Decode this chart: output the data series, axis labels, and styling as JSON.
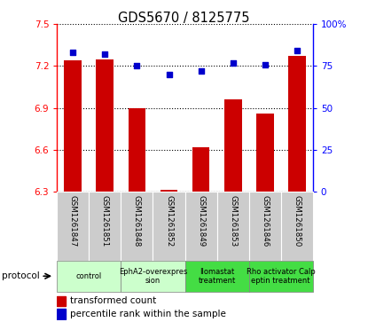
{
  "title": "GDS5670 / 8125775",
  "samples": [
    "GSM1261847",
    "GSM1261851",
    "GSM1261848",
    "GSM1261852",
    "GSM1261849",
    "GSM1261853",
    "GSM1261846",
    "GSM1261850"
  ],
  "bar_values": [
    7.24,
    7.25,
    6.9,
    6.31,
    6.62,
    6.96,
    6.86,
    7.27
  ],
  "dot_values": [
    83,
    82,
    75,
    70,
    72,
    77,
    76,
    84
  ],
  "ylim_left": [
    6.3,
    7.5
  ],
  "ylim_right": [
    0,
    100
  ],
  "yticks_left": [
    6.3,
    6.6,
    6.9,
    7.2,
    7.5
  ],
  "yticks_right": [
    0,
    25,
    50,
    75,
    100
  ],
  "ytick_labels_right": [
    "0",
    "25",
    "50",
    "75",
    "100%"
  ],
  "bar_color": "#cc0000",
  "dot_color": "#0000cc",
  "bg_color": "#ffffff",
  "protocols": [
    {
      "label": "control",
      "spans": [
        0,
        2
      ],
      "color": "#ccffcc"
    },
    {
      "label": "EphA2-overexpres\nsion",
      "spans": [
        2,
        4
      ],
      "color": "#ccffcc"
    },
    {
      "label": "Ilomastat\ntreatment",
      "spans": [
        4,
        6
      ],
      "color": "#44dd44"
    },
    {
      "label": "Rho activator Calp\neptin treatment",
      "spans": [
        6,
        8
      ],
      "color": "#44dd44"
    }
  ],
  "legend_bar_label": "transformed count",
  "legend_dot_label": "percentile rank within the sample",
  "protocol_label": "protocol",
  "bar_width": 0.55,
  "sample_box_color": "#cccccc",
  "grid_color": "#000000",
  "spine_left_color": "#ff0000",
  "spine_right_color": "#0000ff"
}
